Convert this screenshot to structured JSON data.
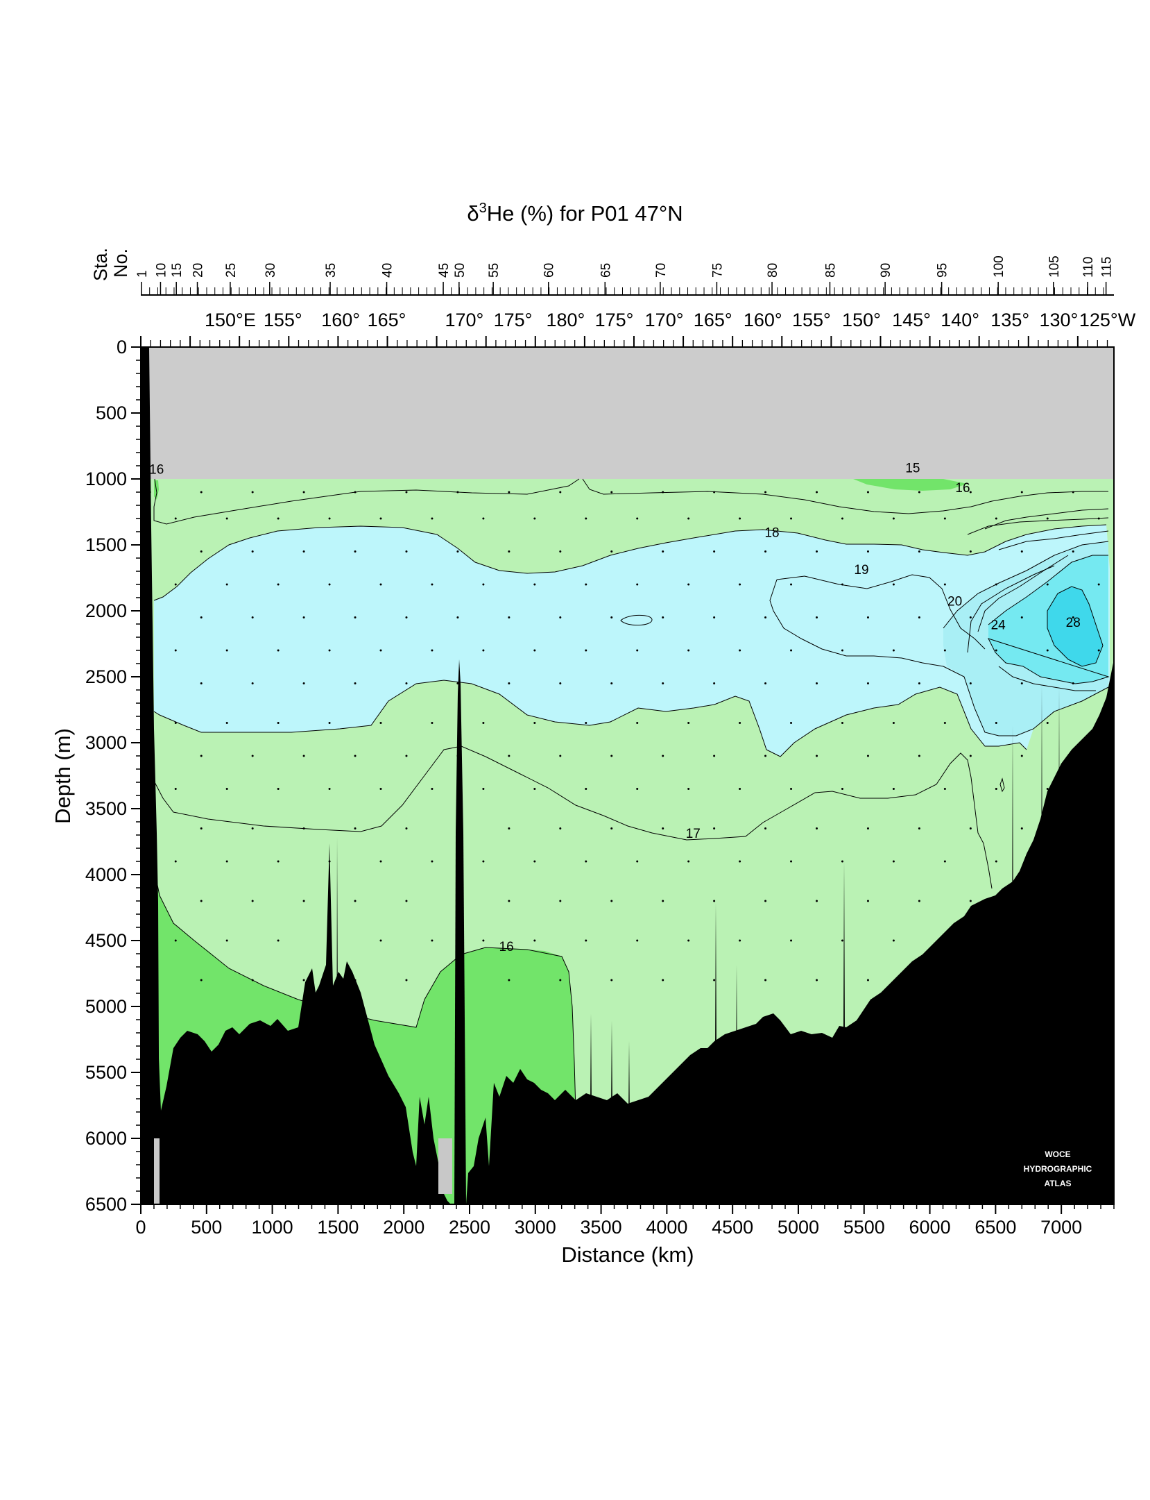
{
  "chart_data": {
    "type": "contour",
    "title_delta": "δ",
    "title_sup": "3",
    "title_rest": "He (%) for P01 47°N",
    "xlabel": "Distance (km)",
    "ylabel": "Depth (m)",
    "xlim": [
      0,
      7400
    ],
    "ylim": [
      6500,
      0
    ],
    "x_ticks": [
      "0",
      "500",
      "1000",
      "1500",
      "2000",
      "2500",
      "3000",
      "3500",
      "4000",
      "4500",
      "5000",
      "5500",
      "6000",
      "6500",
      "7000"
    ],
    "y_ticks": [
      "0",
      "500",
      "1000",
      "1500",
      "2000",
      "2500",
      "3000",
      "3500",
      "4000",
      "4500",
      "5000",
      "5500",
      "6000",
      "6500"
    ],
    "station_axis": {
      "label_line1": "Sta.",
      "label_line2": "No.",
      "labels": [
        {
          "text": "1",
          "km": 5
        },
        {
          "text": "10",
          "km": 150
        },
        {
          "text": "15",
          "km": 270
        },
        {
          "text": "20",
          "km": 430
        },
        {
          "text": "25",
          "km": 680
        },
        {
          "text": "30",
          "km": 980
        },
        {
          "text": "35",
          "km": 1440
        },
        {
          "text": "40",
          "km": 1870
        },
        {
          "text": "45",
          "km": 2300
        },
        {
          "text": "50",
          "km": 2420
        },
        {
          "text": "55",
          "km": 2680
        },
        {
          "text": "60",
          "km": 3100
        },
        {
          "text": "65",
          "km": 3530
        },
        {
          "text": "70",
          "km": 3950
        },
        {
          "text": "75",
          "km": 4380
        },
        {
          "text": "80",
          "km": 4800
        },
        {
          "text": "85",
          "km": 5240
        },
        {
          "text": "90",
          "km": 5660
        },
        {
          "text": "95",
          "km": 6090
        },
        {
          "text": "100",
          "km": 6520
        },
        {
          "text": "105",
          "km": 6940
        },
        {
          "text": "110",
          "km": 7200
        },
        {
          "text": "115",
          "km": 7340
        }
      ]
    },
    "longitude_labels": [
      {
        "text": "150°E",
        "km": 680
      },
      {
        "text": "155°",
        "km": 1080
      },
      {
        "text": "160°",
        "km": 1520
      },
      {
        "text": "165°",
        "km": 1870
      },
      {
        "text": "170°",
        "km": 2460
      },
      {
        "text": "175°",
        "km": 2830
      },
      {
        "text": "180°",
        "km": 3230
      },
      {
        "text": "175°",
        "km": 3600
      },
      {
        "text": "170°",
        "km": 3980
      },
      {
        "text": "165°",
        "km": 4350
      },
      {
        "text": "160°",
        "km": 4730
      },
      {
        "text": "155°",
        "km": 5100
      },
      {
        "text": "150°",
        "km": 5480
      },
      {
        "text": "145°",
        "km": 5860
      },
      {
        "text": "140°",
        "km": 6230
      },
      {
        "text": "135°",
        "km": 6610
      },
      {
        "text": "130°",
        "km": 6980
      },
      {
        "text": "125°W",
        "km": 7350
      }
    ],
    "contour_labels": [
      {
        "text": "16",
        "km": 120,
        "depth": 960
      },
      {
        "text": "15",
        "km": 5870,
        "depth": 950
      },
      {
        "text": "16",
        "km": 6250,
        "depth": 1100
      },
      {
        "text": "18",
        "km": 4800,
        "depth": 1440
      },
      {
        "text": "19",
        "km": 5480,
        "depth": 1720
      },
      {
        "text": "20",
        "km": 6190,
        "depth": 1960
      },
      {
        "text": "24",
        "km": 6520,
        "depth": 2140
      },
      {
        "text": "28",
        "km": 7090,
        "depth": 2120
      },
      {
        "text": "17",
        "km": 4200,
        "depth": 3720
      },
      {
        "text": "16",
        "km": 2780,
        "depth": 4580
      }
    ],
    "levels": [
      15,
      16,
      17,
      18,
      19,
      20,
      24,
      28
    ],
    "data_top_depth": 1000,
    "colors": {
      "above_data": "#cccccc",
      "band_15_16": "#72e46a",
      "band_16_18": "#baf2b4",
      "band_18_20": "#bdf6fb",
      "band_20_24": "#a9eff5",
      "band_24_28": "#75e9f1",
      "band_28_plus": "#3fd8eb",
      "bottom": "#000000",
      "no_data": "#c8c8c8"
    },
    "logo": {
      "line1": "WOCE",
      "line2": "HYDROGRAPHIC",
      "line3": "ATLAS"
    }
  }
}
